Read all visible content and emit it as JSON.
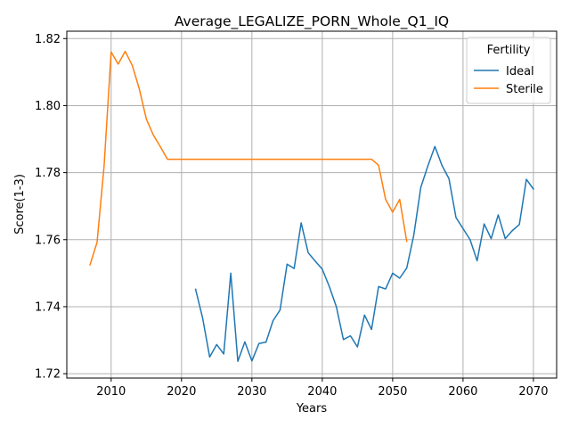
{
  "chart_data": {
    "type": "line",
    "title": "Average_LEGALIZE_PORN_Whole_Q1_IQ",
    "xlabel": "Years",
    "ylabel": "Score(1-3)",
    "xlim": [
      2003.7,
      2073.3
    ],
    "ylim": [
      1.7187,
      1.8222
    ],
    "xticks": [
      2010,
      2020,
      2030,
      2040,
      2050,
      2060,
      2070
    ],
    "yticks": [
      1.72,
      1.74,
      1.76,
      1.78,
      1.8,
      1.82
    ],
    "ytick_labels": [
      "1.72",
      "1.74",
      "1.76",
      "1.78",
      "1.80",
      "1.82"
    ],
    "grid": true,
    "legend": {
      "title": "Fertility",
      "position": "top-right"
    },
    "series": [
      {
        "name": "Ideal",
        "color": "#1f77b4",
        "x": [
          2022,
          2023,
          2024,
          2025,
          2026,
          2027,
          2028,
          2029,
          2030,
          2031,
          2032,
          2033,
          2034,
          2035,
          2036,
          2037,
          2038,
          2039,
          2040,
          2041,
          2042,
          2043,
          2044,
          2045,
          2046,
          2047,
          2048,
          2049,
          2050,
          2051,
          2052,
          2053,
          2054,
          2055,
          2056,
          2057,
          2058,
          2059,
          2060,
          2061,
          2062,
          2063,
          2064,
          2065,
          2066,
          2067,
          2068,
          2069,
          2070
        ],
        "y": [
          1.7452,
          1.7366,
          1.725,
          1.7287,
          1.7259,
          1.75,
          1.7237,
          1.7295,
          1.7238,
          1.729,
          1.7294,
          1.7358,
          1.739,
          1.7527,
          1.7514,
          1.765,
          1.7561,
          1.7536,
          1.7512,
          1.746,
          1.74,
          1.7302,
          1.7313,
          1.728,
          1.7375,
          1.7332,
          1.746,
          1.7453,
          1.75,
          1.7485,
          1.7515,
          1.7613,
          1.7756,
          1.782,
          1.7878,
          1.7822,
          1.7782,
          1.7666,
          1.7633,
          1.76,
          1.7537,
          1.7647,
          1.7603,
          1.7674,
          1.7603,
          1.7627,
          1.7645,
          1.778,
          1.7751
        ]
      },
      {
        "name": "Sterile",
        "color": "#ff7f0e",
        "x": [
          2007,
          2008,
          2009,
          2010,
          2011,
          2012,
          2013,
          2014,
          2015,
          2016,
          2017,
          2018,
          2019,
          2020,
          2025,
          2030,
          2035,
          2040,
          2045,
          2047,
          2048,
          2049,
          2050,
          2051,
          2052
        ],
        "y": [
          1.7525,
          1.7592,
          1.782,
          1.816,
          1.8124,
          1.8162,
          1.812,
          1.805,
          1.796,
          1.7912,
          1.7877,
          1.784,
          1.784,
          1.784,
          1.784,
          1.784,
          1.784,
          1.784,
          1.784,
          1.784,
          1.7822,
          1.772,
          1.7682,
          1.772,
          1.7595
        ]
      }
    ]
  }
}
